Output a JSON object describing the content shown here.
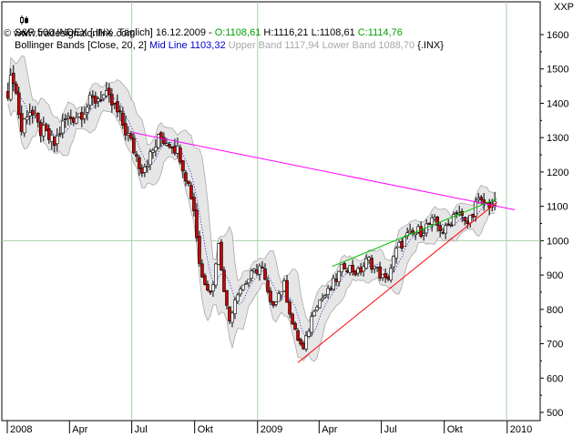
{
  "legend": {
    "line1": {
      "symbol_label": "S&P 500 INDEX [.INX  Täglich]",
      "date": "16.12.2009",
      "open": "O:1108,61",
      "high": "H:1116,21",
      "low": "L:1108,61",
      "close": "C:1114,76"
    },
    "line2": {
      "indicator": "Bollinger Bands [Close, 20, 2]",
      "mid": "Mid Line 1103,32",
      "upper": "Upper Band 1117,94",
      "lower": "Lower Band 1088,70",
      "suffix": "{.INX}"
    },
    "line3": {
      "source": "www.tradesignalonline.com"
    }
  },
  "symbol_code": "XXP",
  "colors": {
    "open": "#00a000",
    "high_low": "#000000",
    "close": "#00a000",
    "mid": "#0000cc",
    "upper_lower": "#a8a8a8",
    "band_fill": "#e6e6e6",
    "resistance": "#ff00ff",
    "upper_channel": "#00c000",
    "support": "#ff0000",
    "grid": "#a6d0a6",
    "up_candle": "#ffffff",
    "down_candle": "#cc0000"
  },
  "chart_data": {
    "type": "candlestick",
    "title": "S&P 500 INDEX [.INX  Täglich]",
    "yaxis_position": "right",
    "ylim": [
      480,
      1630
    ],
    "yticks": [
      500,
      600,
      700,
      800,
      900,
      1000,
      1100,
      1200,
      1300,
      1400,
      1500,
      1600
    ],
    "xlim": [
      "2008-01-01",
      "2009-12-31"
    ],
    "x_ticks": [
      {
        "date": "2008-01-01",
        "label": "2008"
      },
      {
        "date": "2008-04-01",
        "label": "Apr"
      },
      {
        "date": "2008-07-01",
        "label": "Jul"
      },
      {
        "date": "2008-10-01",
        "label": "Okt"
      },
      {
        "date": "2009-01-01",
        "label": "2009"
      },
      {
        "date": "2009-04-01",
        "label": "Apr"
      },
      {
        "date": "2009-07-01",
        "label": "Jul"
      },
      {
        "date": "2009-10-01",
        "label": "Okt"
      },
      {
        "date": "2010-01-01",
        "label": "2010"
      }
    ],
    "grid_lines": {
      "y": [
        1000
      ],
      "x": [
        "2008-07-01",
        "2009-01-01",
        "2009-12-31"
      ]
    },
    "price_path": [
      {
        "date": "2008-01-02",
        "close": 1440
      },
      {
        "date": "2008-01-10",
        "close": 1480
      },
      {
        "date": "2008-01-22",
        "close": 1320
      },
      {
        "date": "2008-02-01",
        "close": 1390
      },
      {
        "date": "2008-02-15",
        "close": 1330
      },
      {
        "date": "2008-03-10",
        "close": 1280
      },
      {
        "date": "2008-03-25",
        "close": 1350
      },
      {
        "date": "2008-04-15",
        "close": 1370
      },
      {
        "date": "2008-05-01",
        "close": 1400
      },
      {
        "date": "2008-05-19",
        "close": 1425
      },
      {
        "date": "2008-06-05",
        "close": 1390
      },
      {
        "date": "2008-06-20",
        "close": 1330
      },
      {
        "date": "2008-07-01",
        "close": 1280
      },
      {
        "date": "2008-07-15",
        "close": 1210
      },
      {
        "date": "2008-07-28",
        "close": 1245
      },
      {
        "date": "2008-08-11",
        "close": 1300
      },
      {
        "date": "2008-08-29",
        "close": 1285
      },
      {
        "date": "2008-09-10",
        "close": 1250
      },
      {
        "date": "2008-09-29",
        "close": 1110
      },
      {
        "date": "2008-10-10",
        "close": 900
      },
      {
        "date": "2008-10-27",
        "close": 850
      },
      {
        "date": "2008-11-04",
        "close": 1000
      },
      {
        "date": "2008-11-20",
        "close": 760
      },
      {
        "date": "2008-12-01",
        "close": 850
      },
      {
        "date": "2008-12-15",
        "close": 880
      },
      {
        "date": "2009-01-06",
        "close": 930
      },
      {
        "date": "2009-01-20",
        "close": 810
      },
      {
        "date": "2009-02-09",
        "close": 870
      },
      {
        "date": "2009-02-23",
        "close": 740
      },
      {
        "date": "2009-03-09",
        "close": 680
      },
      {
        "date": "2009-03-26",
        "close": 815
      },
      {
        "date": "2009-04-15",
        "close": 850
      },
      {
        "date": "2009-05-08",
        "close": 930
      },
      {
        "date": "2009-05-28",
        "close": 905
      },
      {
        "date": "2009-06-12",
        "close": 945
      },
      {
        "date": "2009-07-08",
        "close": 880
      },
      {
        "date": "2009-07-24",
        "close": 975
      },
      {
        "date": "2009-08-07",
        "close": 1010
      },
      {
        "date": "2009-08-28",
        "close": 1030
      },
      {
        "date": "2009-09-15",
        "close": 1055
      },
      {
        "date": "2009-10-02",
        "close": 1025
      },
      {
        "date": "2009-10-20",
        "close": 1095
      },
      {
        "date": "2009-11-02",
        "close": 1040
      },
      {
        "date": "2009-11-17",
        "close": 1110
      },
      {
        "date": "2009-12-01",
        "close": 1105
      },
      {
        "date": "2009-12-16",
        "close": 1114.76
      }
    ],
    "trendlines": [
      {
        "name": "resistance",
        "from": {
          "date": "2008-07-02",
          "value": 1315
        },
        "to": {
          "date": "2010-01-12",
          "value": 1090
        }
      },
      {
        "name": "upper-channel",
        "from": {
          "date": "2009-04-20",
          "value": 925
        },
        "to": {
          "date": "2009-12-17",
          "value": 1122
        }
      },
      {
        "name": "support",
        "from": {
          "date": "2009-03-01",
          "value": 645
        },
        "to": {
          "date": "2009-12-17",
          "value": 1112
        }
      }
    ]
  }
}
